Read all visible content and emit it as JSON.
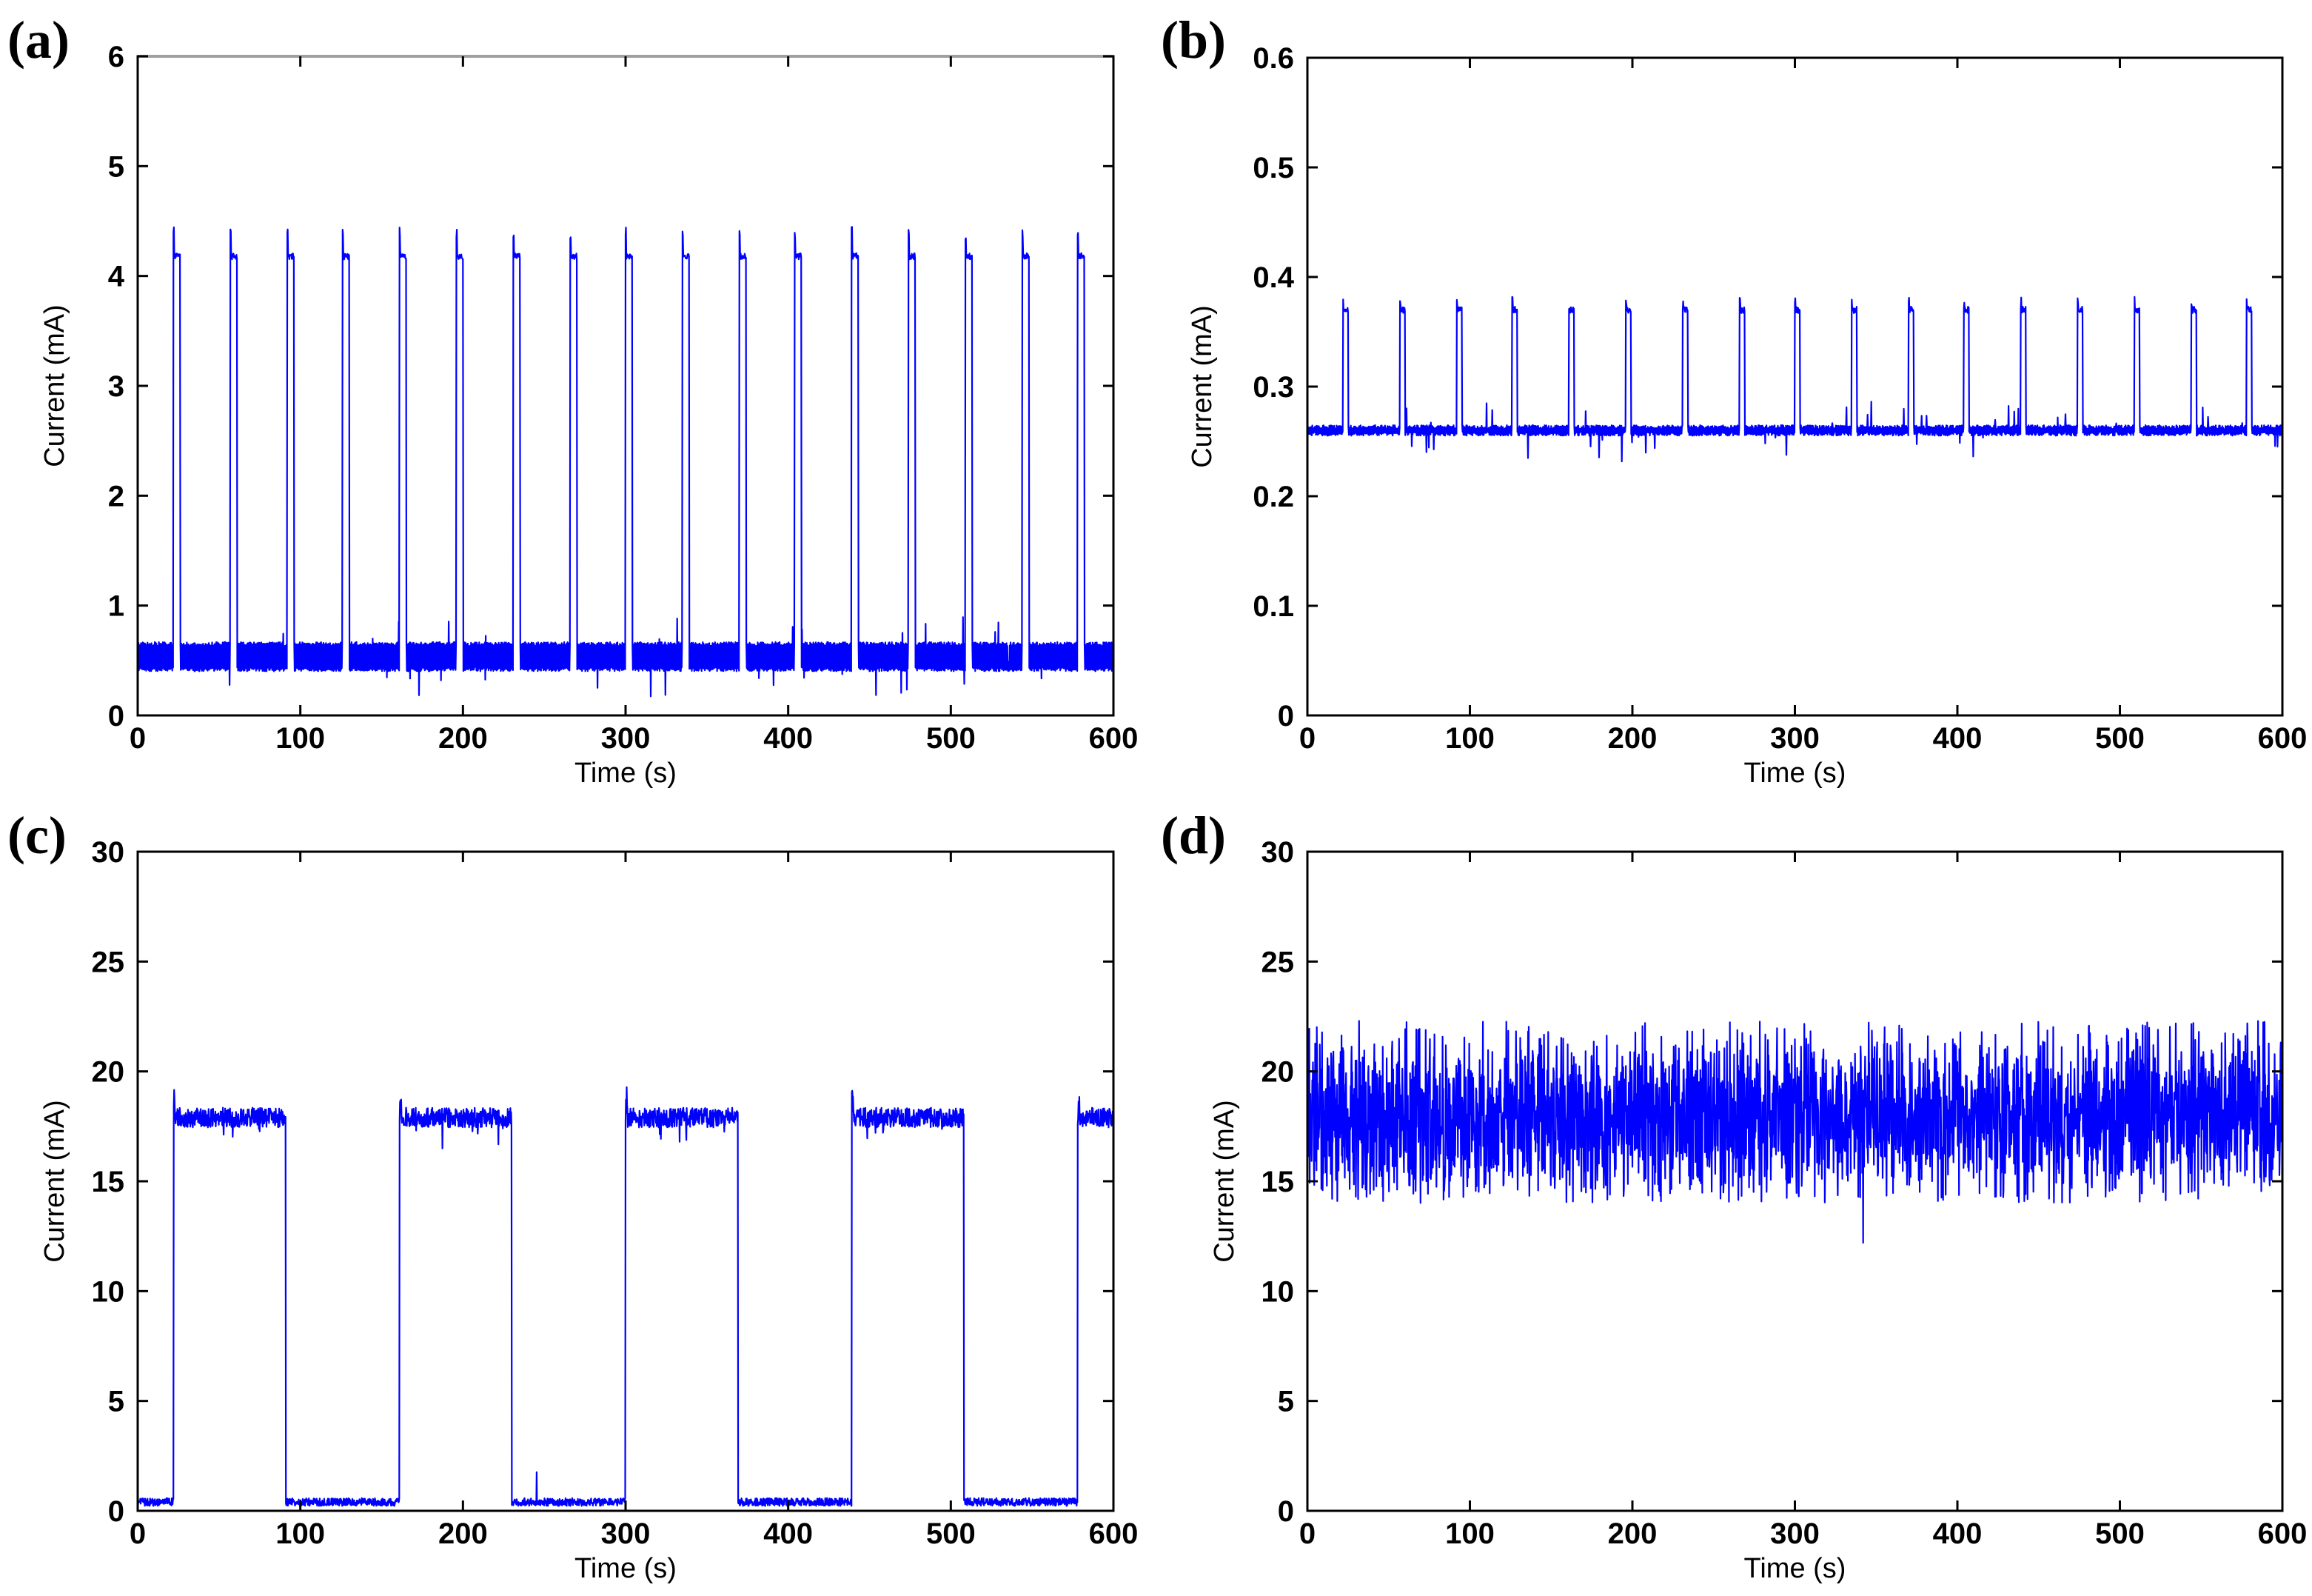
{
  "colors": {
    "trace": "#0000ff",
    "axes": "#000000",
    "top_rule": "#a0a0a0"
  },
  "chart_data": [
    {
      "panel_label": "(a)",
      "type": "line",
      "xlabel": "Time (s)",
      "ylabel": "Current (mA)",
      "xlim": [
        0,
        600
      ],
      "ylim": [
        0,
        6
      ],
      "xticks": [
        0,
        100,
        200,
        300,
        400,
        500,
        600
      ],
      "yticks": [
        0,
        1,
        2,
        3,
        4,
        5,
        6
      ],
      "tick_labels_x": [
        "0",
        "100",
        "200",
        "300",
        "400",
        "500",
        "600"
      ],
      "tick_labels_y": [
        "0",
        "1",
        "2",
        "3",
        "4",
        "5",
        "6"
      ],
      "grid": false,
      "series": [
        {
          "color": "#0000ff",
          "signal": "pulses",
          "baseline_band": [
            0.42,
            0.65
          ],
          "pulse_level": 4.18,
          "pulse_peak": 4.45,
          "pulse_starts": [
            22,
            57,
            92,
            126,
            161,
            196,
            231,
            266,
            300,
            335,
            370,
            404,
            439,
            474,
            509,
            544,
            578
          ],
          "pulse_width": 4
        }
      ]
    },
    {
      "panel_label": "(b)",
      "type": "line",
      "xlabel": "Time (s)",
      "ylabel": "Current (mA)",
      "xlim": [
        0,
        600
      ],
      "ylim": [
        0,
        0.6
      ],
      "xticks": [
        0,
        100,
        200,
        300,
        400,
        500,
        600
      ],
      "yticks": [
        0,
        0.1,
        0.2,
        0.3,
        0.4,
        0.5,
        0.6
      ],
      "tick_labels_x": [
        "0",
        "100",
        "200",
        "300",
        "400",
        "500",
        "600"
      ],
      "tick_labels_y": [
        "0",
        "0.1",
        "0.2",
        "0.3",
        "0.4",
        "0.5",
        "0.6"
      ],
      "grid": false,
      "series": [
        {
          "color": "#0000ff",
          "signal": "pulses",
          "baseline_band": [
            0.257,
            0.263
          ],
          "pulse_level": 0.37,
          "pulse_peak": 0.382,
          "pulse_starts": [
            22,
            57,
            92,
            126,
            161,
            196,
            231,
            266,
            300,
            335,
            370,
            404,
            439,
            474,
            509,
            544,
            578
          ],
          "pulse_width": 3
        }
      ]
    },
    {
      "panel_label": "(c)",
      "type": "line",
      "xlabel": "Time (s)",
      "ylabel": "Current (mA)",
      "xlim": [
        0,
        600
      ],
      "ylim": [
        0,
        30
      ],
      "xticks": [
        0,
        100,
        200,
        300,
        400,
        500,
        600
      ],
      "yticks": [
        0,
        5,
        10,
        15,
        20,
        25,
        30
      ],
      "tick_labels_x": [
        "0",
        "100",
        "200",
        "300",
        "400",
        "500",
        "600"
      ],
      "tick_labels_y": [
        "0",
        "5",
        "10",
        "15",
        "20",
        "25",
        "30"
      ],
      "grid": false,
      "series": [
        {
          "color": "#0000ff",
          "signal": "square",
          "low_level": 0.4,
          "high_level": 17.9,
          "high_segments": [
            [
              22,
              91
            ],
            [
              161,
              230
            ],
            [
              300,
              369
            ],
            [
              439,
              508
            ],
            [
              578,
              600
            ]
          ]
        }
      ]
    },
    {
      "panel_label": "(d)",
      "type": "line",
      "xlabel": "Time (s)",
      "ylabel": "Current (mA)",
      "xlim": [
        0,
        600
      ],
      "ylim": [
        0,
        30
      ],
      "xticks": [
        0,
        100,
        200,
        300,
        400,
        500,
        600
      ],
      "yticks": [
        0,
        5,
        10,
        15,
        20,
        25,
        30
      ],
      "tick_labels_x": [
        "0",
        "100",
        "200",
        "300",
        "400",
        "500",
        "600"
      ],
      "tick_labels_y": [
        "0",
        "5",
        "10",
        "15",
        "20",
        "25",
        "30"
      ],
      "grid": false,
      "series": [
        {
          "color": "#0000ff",
          "signal": "noise",
          "mean": 18.0,
          "spread": [
            14.0,
            22.3
          ],
          "min_point": [
            342,
            12.2
          ]
        }
      ]
    }
  ]
}
